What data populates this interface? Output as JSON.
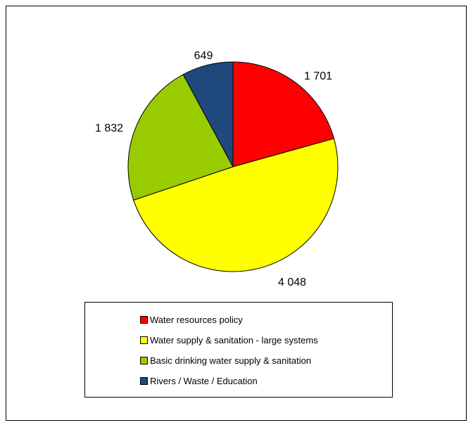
{
  "chart_data": {
    "type": "pie",
    "categories": [
      "Water resources policy",
      "Water supply & sanitation - large systems",
      "Basic drinking water supply & sanitation",
      "Rivers / Waste / Education"
    ],
    "values": [
      1701,
      4048,
      1832,
      649
    ],
    "data_labels": [
      "1 701",
      "4 048",
      "1 832",
      "649"
    ],
    "colors": [
      "#ff0000",
      "#ffff00",
      "#99cc00",
      "#1f497d"
    ],
    "start_angle_deg": 0,
    "direction": "clockwise",
    "legend_position": "bottom",
    "title": ""
  }
}
